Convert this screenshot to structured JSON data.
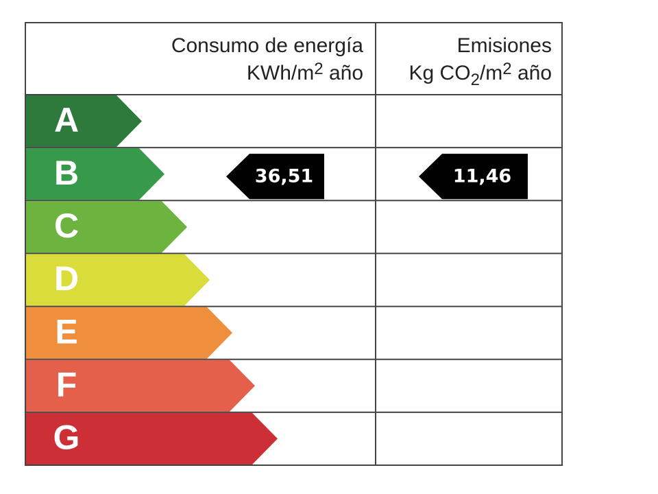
{
  "header": {
    "energy": {
      "title": "Consumo de energía",
      "unit": [
        "KWh/m",
        "2",
        " año"
      ]
    },
    "emissions": {
      "title": "Emisiones",
      "unit": [
        "Kg CO",
        "2",
        "/m",
        "2",
        " año"
      ]
    }
  },
  "ratings": [
    {
      "letter": "A",
      "color": "#2d7a3c"
    },
    {
      "letter": "B",
      "color": "#37994a"
    },
    {
      "letter": "C",
      "color": "#6cb43f"
    },
    {
      "letter": "D",
      "color": "#d9dc39"
    },
    {
      "letter": "E",
      "color": "#ef8e3c"
    },
    {
      "letter": "F",
      "color": "#e5604a"
    },
    {
      "letter": "G",
      "color": "#cc3036"
    }
  ],
  "indicators": {
    "energy": {
      "rating": "B",
      "value": "36,51"
    },
    "emissions": {
      "rating": "B",
      "value": "11,46"
    }
  }
}
